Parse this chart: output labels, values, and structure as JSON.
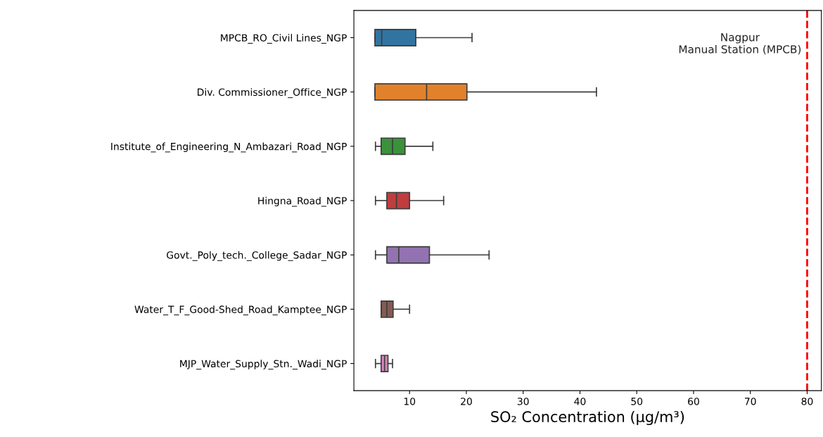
{
  "chart_data": {
    "type": "box",
    "orientation": "horizontal",
    "xlabel": "SO₂ Concentration (μg/m³)",
    "categories": [
      "MPCB_RO_Civil Lines_NGP",
      "Div. Commissioner_Office_NGP",
      "Institute_of_Engineering_N_Ambazari_Road_NGP",
      "Hingna_Road_NGP",
      "Govt._Poly_tech._College_Sadar_NGP",
      "Water_T_F_Good-Shed_Road_Kamptee_NGP",
      "MJP_Water_Supply_Stn._Wadi_NGP"
    ],
    "boxes": [
      {
        "low": 3.9,
        "q1": 3.9,
        "median": 5.1,
        "q3": 11.1,
        "high": 21.0
      },
      {
        "low": 3.9,
        "q1": 3.9,
        "median": 13.0,
        "q3": 20.1,
        "high": 42.9
      },
      {
        "low": 4.0,
        "q1": 5.0,
        "median": 7.0,
        "q3": 9.2,
        "high": 14.1
      },
      {
        "low": 4.0,
        "q1": 6.0,
        "median": 7.7,
        "q3": 10.0,
        "high": 16.0
      },
      {
        "low": 4.0,
        "q1": 6.0,
        "median": 8.1,
        "q3": 13.5,
        "high": 24.0
      },
      {
        "low": 5.0,
        "q1": 5.0,
        "median": 6.0,
        "q3": 7.1,
        "high": 10.0
      },
      {
        "low": 4.0,
        "q1": 5.0,
        "median": 5.6,
        "q3": 6.2,
        "high": 7.0
      }
    ],
    "colors": [
      "#3274a1",
      "#e1812c",
      "#3a923a",
      "#c03d3e",
      "#9372b2",
      "#845b53",
      "#d684bd"
    ],
    "xlim": [
      0.2,
      82.5
    ],
    "xticks": [
      10,
      20,
      30,
      40,
      50,
      60,
      70,
      80
    ],
    "ref_lines": [
      {
        "axis": "x",
        "value": 80,
        "label": "Nagpur\nManual Station (MPCB)",
        "color": "#ff0000",
        "line_style": "dashed"
      }
    ],
    "grid": false
  }
}
